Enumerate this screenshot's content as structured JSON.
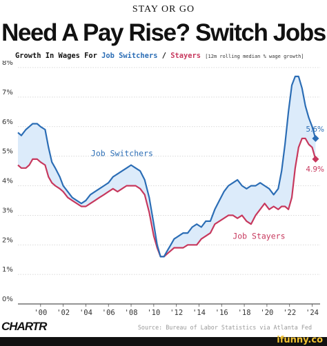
{
  "header": {
    "kicker": "STAY OR GO",
    "title": "Need A Pay Rise? Switch Jobs",
    "subtitle_prefix": "Growth In Wages For ",
    "subtitle_switchers": "Job Switchers",
    "subtitle_sep": " / ",
    "subtitle_stayers": "Stayers",
    "subtitle_note": "[12m rolling median % wage growth]"
  },
  "footer": {
    "brand": "CHARTR",
    "source": "Source: Bureau of Labor Statistics via Atlanta Fed",
    "watermark": "ifunny.co"
  },
  "colors": {
    "switchers": "#2b6db5",
    "stayers": "#c7385d",
    "fill": "#dcebfa",
    "grid": "#cccccc",
    "axis_text": "#333333"
  },
  "chart_data": {
    "type": "line",
    "title": "Need A Pay Rise? Switch Jobs",
    "subtitle": "Growth In Wages For Job Switchers / Stayers [12m rolling median % wage growth]",
    "xlim": [
      1998,
      2024.7
    ],
    "ylim": [
      0,
      8
    ],
    "x_ticks": [
      2000,
      2002,
      2004,
      2006,
      2008,
      2010,
      2012,
      2014,
      2016,
      2018,
      2020,
      2022,
      2024
    ],
    "x_tick_labels": [
      "'00",
      "'02",
      "'04",
      "'06",
      "'08",
      "'10",
      "'12",
      "'14",
      "'16",
      "'18",
      "'20",
      "'22",
      "'24"
    ],
    "y_ticks": [
      0,
      1,
      2,
      3,
      4,
      5,
      6,
      7,
      8
    ],
    "y_tick_labels": [
      "0%",
      "1%",
      "2%",
      "3%",
      "4%",
      "5%",
      "6%",
      "7%",
      "8%"
    ],
    "grid": "horizontal",
    "series": [
      {
        "name": "Job Switchers",
        "x": [
          1998.0,
          1998.3,
          1998.7,
          1999.0,
          1999.3,
          1999.7,
          2000.0,
          2000.4,
          2000.7,
          2001.0,
          2001.3,
          2001.7,
          2002.0,
          2002.4,
          2002.8,
          2003.2,
          2003.6,
          2004.0,
          2004.4,
          2004.8,
          2005.2,
          2005.6,
          2006.0,
          2006.4,
          2006.8,
          2007.2,
          2007.6,
          2008.0,
          2008.4,
          2008.8,
          2009.2,
          2009.6,
          2010.0,
          2010.3,
          2010.6,
          2010.9,
          2011.2,
          2011.5,
          2011.8,
          2012.2,
          2012.6,
          2013.0,
          2013.4,
          2013.8,
          2014.2,
          2014.6,
          2015.0,
          2015.4,
          2015.8,
          2016.2,
          2016.6,
          2017.0,
          2017.4,
          2017.8,
          2018.2,
          2018.6,
          2019.0,
          2019.4,
          2019.8,
          2020.2,
          2020.6,
          2021.0,
          2021.3,
          2021.6,
          2021.9,
          2022.2,
          2022.5,
          2022.8,
          2023.1,
          2023.4,
          2023.7,
          2024.0,
          2024.3
        ],
        "values": [
          5.8,
          5.7,
          5.9,
          6.0,
          6.1,
          6.1,
          6.0,
          5.9,
          5.3,
          4.8,
          4.6,
          4.3,
          4.0,
          3.8,
          3.6,
          3.5,
          3.4,
          3.5,
          3.7,
          3.8,
          3.9,
          4.0,
          4.1,
          4.3,
          4.4,
          4.5,
          4.6,
          4.7,
          4.6,
          4.5,
          4.2,
          3.6,
          2.7,
          2.0,
          1.6,
          1.6,
          1.8,
          2.0,
          2.2,
          2.3,
          2.4,
          2.4,
          2.6,
          2.7,
          2.6,
          2.8,
          2.8,
          3.2,
          3.5,
          3.8,
          4.0,
          4.1,
          4.2,
          4.0,
          3.9,
          4.0,
          4.0,
          4.1,
          4.0,
          3.9,
          3.7,
          3.9,
          4.5,
          5.4,
          6.5,
          7.4,
          7.7,
          7.7,
          7.3,
          6.7,
          6.3,
          6.0,
          5.6
        ]
      },
      {
        "name": "Job Stayers",
        "x": [
          1998.0,
          1998.3,
          1998.7,
          1999.0,
          1999.3,
          1999.7,
          2000.0,
          2000.4,
          2000.7,
          2001.0,
          2001.3,
          2001.7,
          2002.0,
          2002.4,
          2002.8,
          2003.2,
          2003.6,
          2004.0,
          2004.4,
          2004.8,
          2005.2,
          2005.6,
          2006.0,
          2006.4,
          2006.8,
          2007.2,
          2007.6,
          2008.0,
          2008.4,
          2008.8,
          2009.2,
          2009.6,
          2010.0,
          2010.3,
          2010.6,
          2010.9,
          2011.2,
          2011.5,
          2011.8,
          2012.2,
          2012.6,
          2013.0,
          2013.4,
          2013.8,
          2014.2,
          2014.6,
          2015.0,
          2015.4,
          2015.8,
          2016.2,
          2016.6,
          2017.0,
          2017.4,
          2017.8,
          2018.2,
          2018.6,
          2019.0,
          2019.4,
          2019.8,
          2020.2,
          2020.6,
          2021.0,
          2021.3,
          2021.6,
          2021.9,
          2022.2,
          2022.5,
          2022.8,
          2023.1,
          2023.4,
          2023.7,
          2024.0,
          2024.3
        ],
        "values": [
          4.7,
          4.6,
          4.6,
          4.7,
          4.9,
          4.9,
          4.8,
          4.7,
          4.3,
          4.1,
          4.0,
          3.9,
          3.8,
          3.6,
          3.5,
          3.4,
          3.3,
          3.3,
          3.4,
          3.5,
          3.6,
          3.7,
          3.8,
          3.9,
          3.8,
          3.9,
          4.0,
          4.0,
          4.0,
          3.9,
          3.7,
          3.1,
          2.3,
          1.9,
          1.6,
          1.6,
          1.7,
          1.8,
          1.9,
          1.9,
          1.9,
          2.0,
          2.0,
          2.0,
          2.2,
          2.3,
          2.4,
          2.7,
          2.8,
          2.9,
          3.0,
          3.0,
          2.9,
          3.0,
          2.8,
          2.7,
          3.0,
          3.2,
          3.4,
          3.2,
          3.3,
          3.2,
          3.3,
          3.3,
          3.2,
          3.6,
          4.6,
          5.3,
          5.6,
          5.6,
          5.4,
          5.3,
          4.9
        ]
      }
    ],
    "annotations": [
      {
        "text": "Job Switchers",
        "series": "Job Switchers"
      },
      {
        "text": "Job Stayers",
        "series": "Job Stayers"
      },
      {
        "text": "5.6%",
        "series": "Job Switchers",
        "x": 2024.3,
        "y": 5.6
      },
      {
        "text": "4.9%",
        "series": "Job Stayers",
        "x": 2024.3,
        "y": 4.9
      }
    ]
  }
}
